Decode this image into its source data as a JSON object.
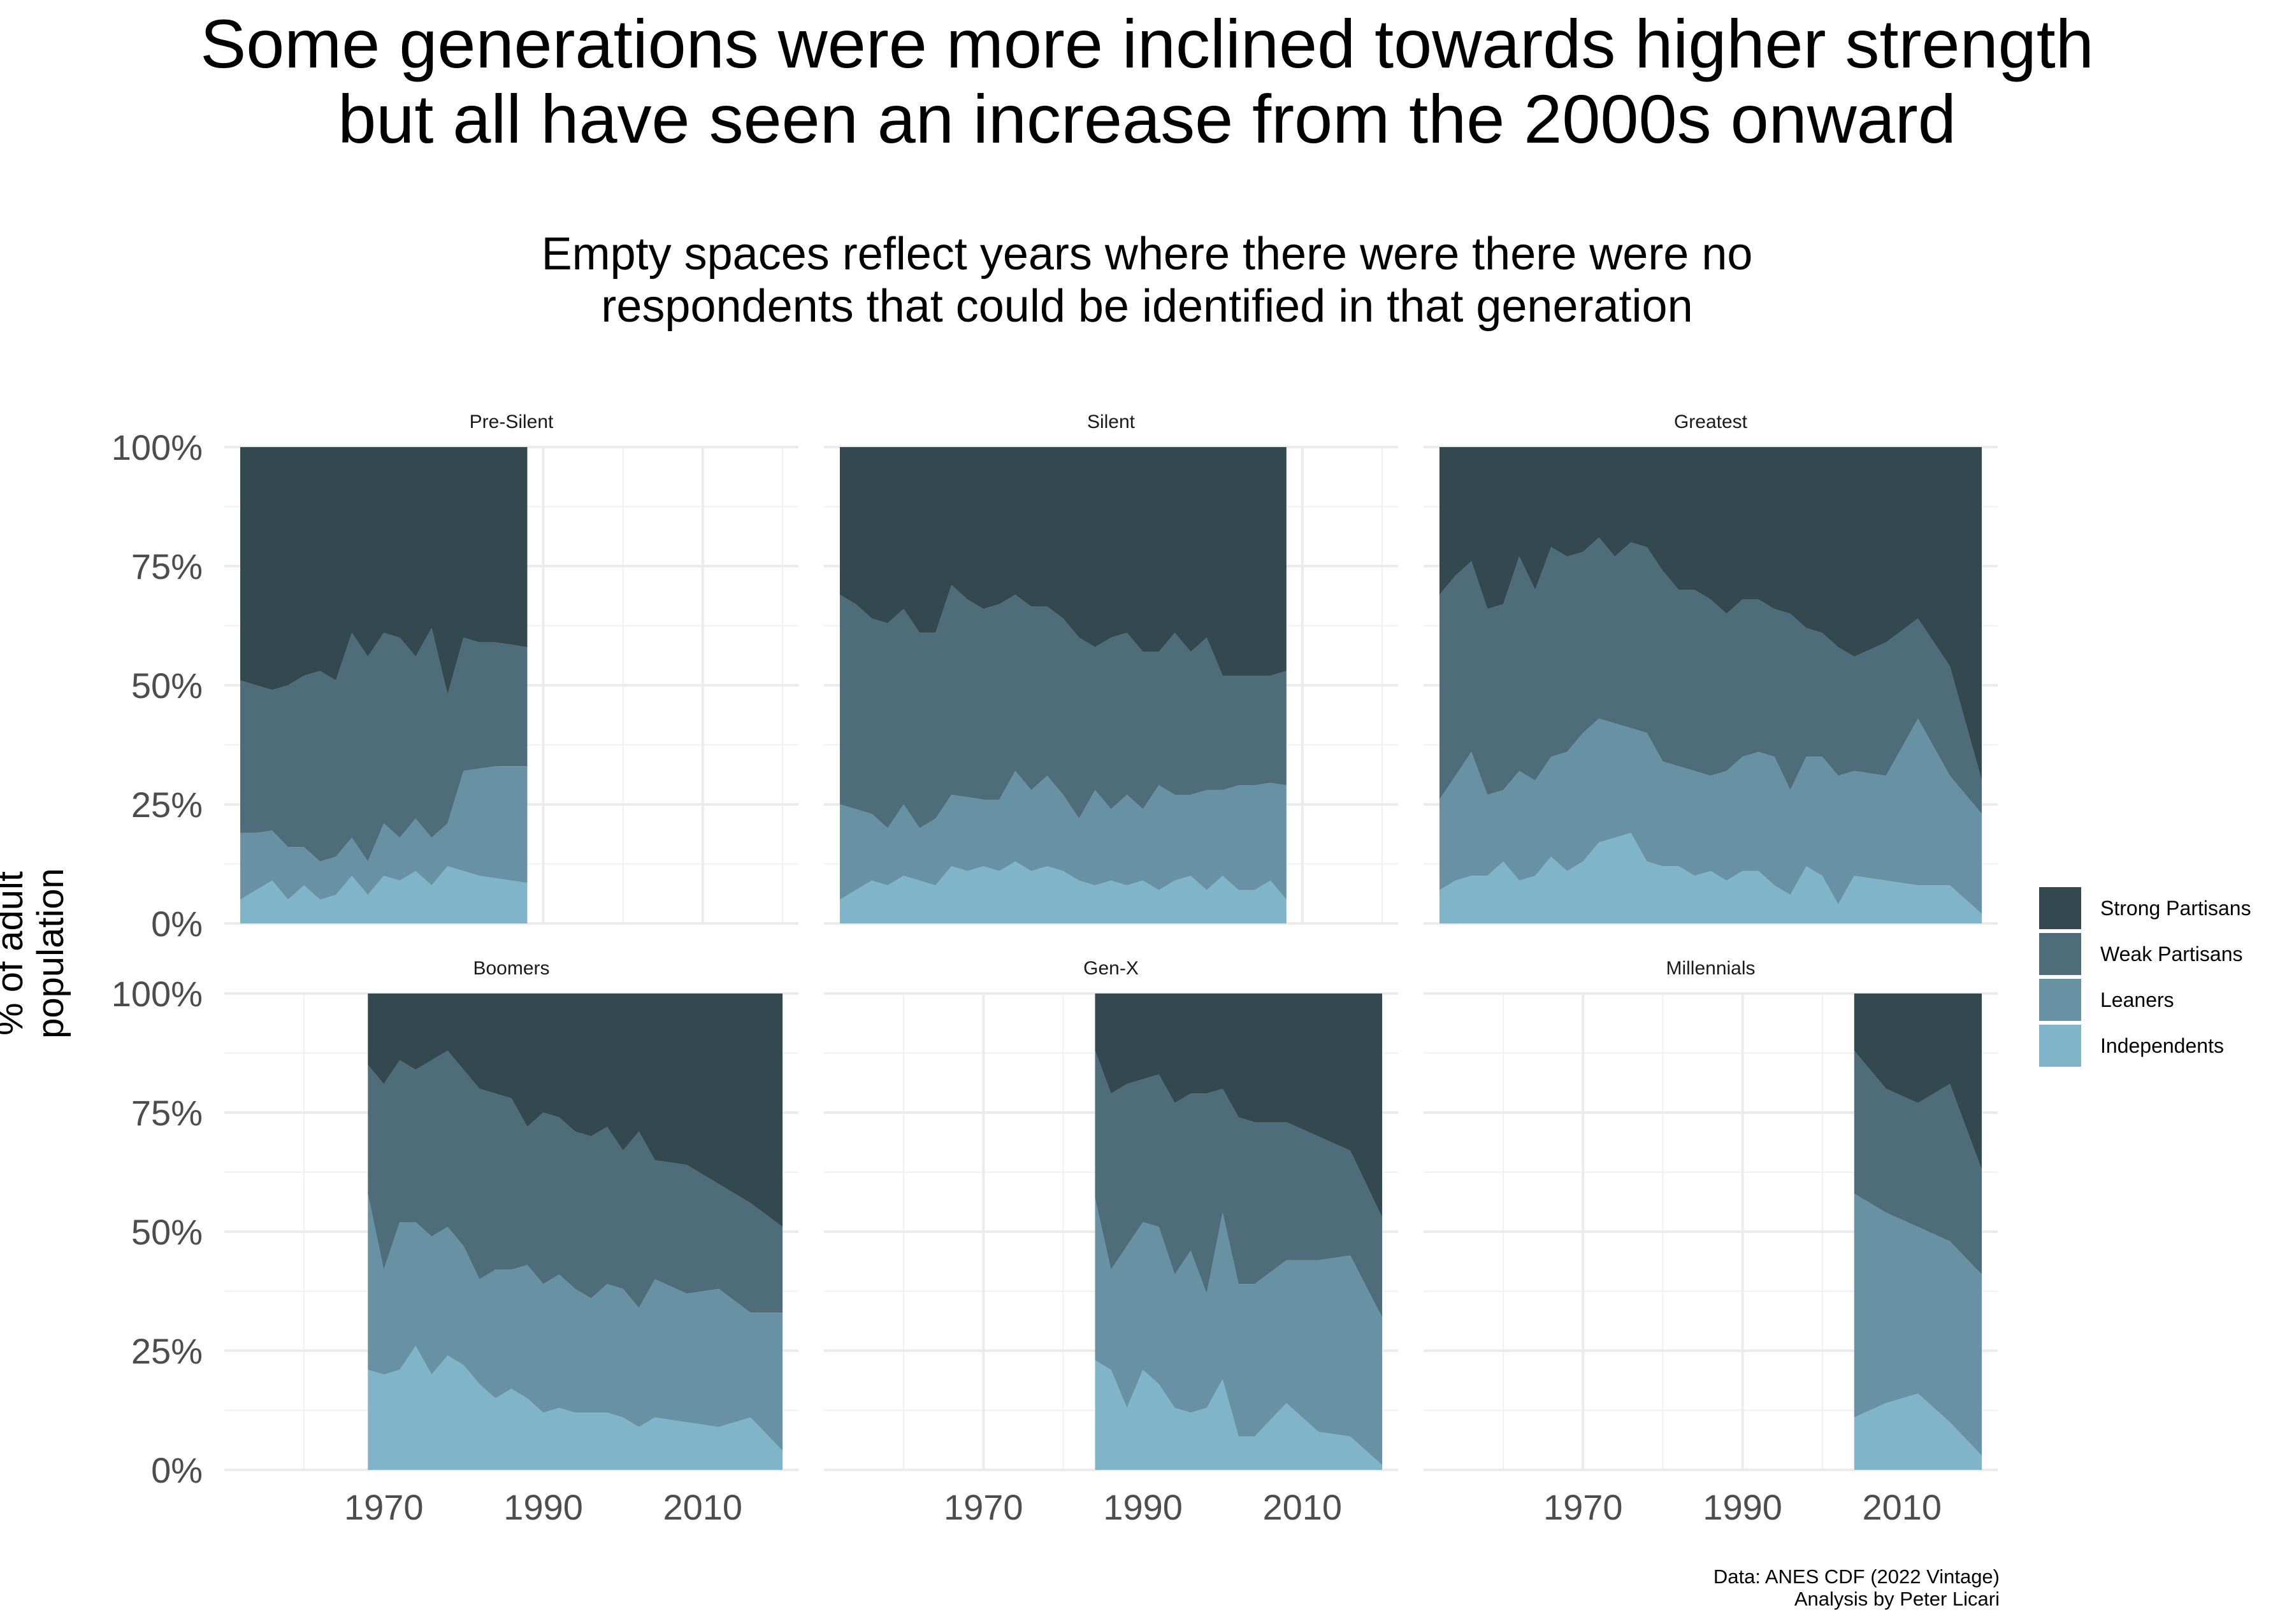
{
  "title": "Some generations were more inclined towards higher strength\nbut all have seen an increase from the 2000s onward",
  "subtitle": "Empty spaces reflect years where there were there were no\nrespondents that could be identified in that generation",
  "caption": "Data: ANES CDF (2022 Vintage)\nAnalysis by Peter Licari",
  "chart_data": {
    "type": "area",
    "stacking": "percent",
    "ylabel": "% of adult\npopulation",
    "y_ticks": [
      "0%",
      "25%",
      "50%",
      "75%",
      "100%"
    ],
    "ylim": [
      0,
      1
    ],
    "xlim": [
      1950,
      2022
    ],
    "x_ticks": [
      1970,
      1990,
      2010
    ],
    "grid": true,
    "legend_position": "right",
    "legend": [
      {
        "name": "Strong Partisans",
        "color": "#34494f"
      },
      {
        "name": "Weak Partisans",
        "color": "#4e6c7a"
      },
      {
        "name": "Leaners",
        "color": "#6891a3"
      },
      {
        "name": "Independents",
        "color": "#80b4c9"
      }
    ],
    "panels": [
      {
        "title": "Pre-Silent",
        "x": [
          1952,
          1954,
          1956,
          1958,
          1960,
          1962,
          1964,
          1966,
          1968,
          1970,
          1972,
          1974,
          1976,
          1978,
          1980,
          1982,
          1984,
          1986,
          1988
        ],
        "independents": [
          0.05,
          0.07,
          0.09,
          0.05,
          0.08,
          0.05,
          0.06,
          0.1,
          0.06,
          0.1,
          0.09,
          0.11,
          0.08,
          0.12,
          0.11,
          0.1,
          0.095,
          0.09,
          0.085
        ],
        "cum_leaners": [
          0.19,
          0.19,
          0.195,
          0.16,
          0.16,
          0.13,
          0.14,
          0.18,
          0.13,
          0.21,
          0.18,
          0.22,
          0.18,
          0.21,
          0.32,
          0.325,
          0.33,
          0.33,
          0.33
        ],
        "cum_weak": [
          0.51,
          0.5,
          0.49,
          0.5,
          0.52,
          0.53,
          0.51,
          0.61,
          0.56,
          0.61,
          0.6,
          0.56,
          0.62,
          0.48,
          0.6,
          0.59,
          0.59,
          0.585,
          0.58
        ]
      },
      {
        "title": "Silent",
        "x": [
          1952,
          1954,
          1956,
          1958,
          1960,
          1962,
          1964,
          1966,
          1968,
          1970,
          1972,
          1974,
          1976,
          1978,
          1980,
          1982,
          1984,
          1986,
          1988,
          1990,
          1992,
          1994,
          1996,
          1998,
          2000,
          2002,
          2004,
          2006,
          2008
        ],
        "independents": [
          0.05,
          0.07,
          0.09,
          0.08,
          0.1,
          0.09,
          0.08,
          0.12,
          0.11,
          0.12,
          0.11,
          0.13,
          0.11,
          0.12,
          0.11,
          0.09,
          0.08,
          0.09,
          0.08,
          0.09,
          0.07,
          0.09,
          0.1,
          0.07,
          0.1,
          0.07,
          0.07,
          0.09,
          0.05
        ],
        "cum_leaners": [
          0.25,
          0.24,
          0.23,
          0.2,
          0.25,
          0.2,
          0.22,
          0.27,
          0.265,
          0.26,
          0.26,
          0.32,
          0.28,
          0.31,
          0.27,
          0.22,
          0.28,
          0.24,
          0.27,
          0.24,
          0.29,
          0.27,
          0.27,
          0.28,
          0.28,
          0.29,
          0.29,
          0.295,
          0.29
        ],
        "cum_weak": [
          0.69,
          0.67,
          0.64,
          0.63,
          0.66,
          0.61,
          0.61,
          0.71,
          0.68,
          0.66,
          0.67,
          0.69,
          0.665,
          0.665,
          0.64,
          0.6,
          0.58,
          0.6,
          0.61,
          0.57,
          0.57,
          0.61,
          0.57,
          0.6,
          0.52,
          0.52,
          0.52,
          0.52,
          0.53
        ]
      },
      {
        "title": "Greatest",
        "x": [
          1952,
          1954,
          1956,
          1958,
          1960,
          1962,
          1964,
          1966,
          1968,
          1970,
          1972,
          1974,
          1976,
          1978,
          1980,
          1982,
          1984,
          1986,
          1988,
          1990,
          1992,
          1994,
          1996,
          1998,
          2000,
          2002,
          2004,
          2008,
          2012,
          2016,
          2020
        ],
        "independents": [
          0.07,
          0.09,
          0.1,
          0.1,
          0.13,
          0.09,
          0.1,
          0.14,
          0.11,
          0.13,
          0.17,
          0.18,
          0.19,
          0.13,
          0.12,
          0.12,
          0.1,
          0.11,
          0.09,
          0.11,
          0.11,
          0.08,
          0.06,
          0.12,
          0.1,
          0.04,
          0.1,
          0.09,
          0.08,
          0.08,
          0.02
        ],
        "cum_leaners": [
          0.26,
          0.31,
          0.36,
          0.27,
          0.28,
          0.32,
          0.3,
          0.35,
          0.36,
          0.4,
          0.43,
          0.42,
          0.41,
          0.4,
          0.34,
          0.33,
          0.32,
          0.31,
          0.32,
          0.35,
          0.36,
          0.35,
          0.28,
          0.35,
          0.35,
          0.31,
          0.32,
          0.31,
          0.43,
          0.31,
          0.23
        ],
        "cum_weak": [
          0.69,
          0.73,
          0.76,
          0.66,
          0.67,
          0.77,
          0.7,
          0.79,
          0.77,
          0.78,
          0.81,
          0.77,
          0.8,
          0.79,
          0.74,
          0.7,
          0.7,
          0.68,
          0.65,
          0.68,
          0.68,
          0.66,
          0.65,
          0.62,
          0.61,
          0.58,
          0.56,
          0.59,
          0.64,
          0.54,
          0.3
        ]
      },
      {
        "title": "Boomers",
        "x": [
          1968,
          1970,
          1972,
          1974,
          1976,
          1978,
          1980,
          1982,
          1984,
          1986,
          1988,
          1990,
          1992,
          1994,
          1996,
          1998,
          2000,
          2002,
          2004,
          2008,
          2012,
          2016,
          2020
        ],
        "independents": [
          0.21,
          0.2,
          0.21,
          0.26,
          0.2,
          0.24,
          0.22,
          0.18,
          0.15,
          0.17,
          0.15,
          0.12,
          0.13,
          0.12,
          0.12,
          0.12,
          0.11,
          0.09,
          0.11,
          0.1,
          0.09,
          0.11,
          0.04
        ],
        "cum_leaners": [
          0.58,
          0.42,
          0.52,
          0.52,
          0.49,
          0.51,
          0.47,
          0.4,
          0.42,
          0.42,
          0.43,
          0.39,
          0.41,
          0.38,
          0.36,
          0.39,
          0.38,
          0.34,
          0.4,
          0.37,
          0.38,
          0.33,
          0.33
        ],
        "cum_weak": [
          0.85,
          0.81,
          0.86,
          0.84,
          0.86,
          0.88,
          0.84,
          0.8,
          0.79,
          0.78,
          0.72,
          0.75,
          0.74,
          0.71,
          0.7,
          0.72,
          0.67,
          0.71,
          0.65,
          0.64,
          0.6,
          0.56,
          0.51
        ]
      },
      {
        "title": "Gen-X",
        "x": [
          1984,
          1986,
          1988,
          1990,
          1992,
          1994,
          1996,
          1998,
          2000,
          2002,
          2004,
          2008,
          2012,
          2016,
          2020
        ],
        "independents": [
          0.23,
          0.21,
          0.13,
          0.21,
          0.18,
          0.13,
          0.12,
          0.13,
          0.19,
          0.07,
          0.07,
          0.14,
          0.08,
          0.07,
          0.01
        ],
        "cum_leaners": [
          0.57,
          0.42,
          0.47,
          0.52,
          0.51,
          0.41,
          0.46,
          0.37,
          0.54,
          0.39,
          0.39,
          0.44,
          0.44,
          0.45,
          0.32
        ],
        "cum_weak": [
          0.88,
          0.79,
          0.81,
          0.82,
          0.83,
          0.77,
          0.79,
          0.79,
          0.8,
          0.74,
          0.73,
          0.73,
          0.7,
          0.67,
          0.53
        ]
      },
      {
        "title": "Millennials",
        "x": [
          2004,
          2008,
          2012,
          2016,
          2020
        ],
        "independents": [
          0.11,
          0.14,
          0.16,
          0.1,
          0.03
        ],
        "cum_leaners": [
          0.58,
          0.54,
          0.51,
          0.48,
          0.41
        ],
        "cum_weak": [
          0.88,
          0.8,
          0.77,
          0.81,
          0.63
        ]
      }
    ]
  }
}
